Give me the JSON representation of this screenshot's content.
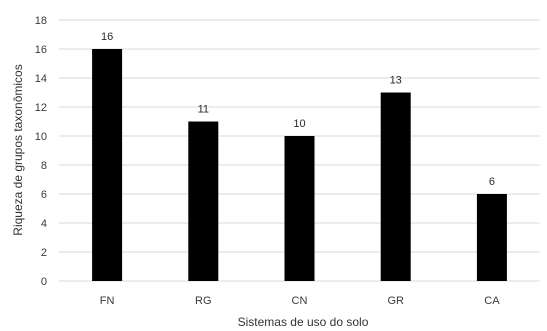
{
  "chart_data": {
    "type": "bar",
    "categories": [
      "FN",
      "RG",
      "CN",
      "GR",
      "CA"
    ],
    "values": [
      16,
      11,
      10,
      13,
      6
    ],
    "data_labels": [
      "16",
      "11",
      "10",
      "13",
      "6"
    ],
    "xlabel": "Sistemas de uso do solo",
    "ylabel": "Riqueza de grupos taxonômicos",
    "ylim": [
      0,
      18
    ],
    "yticks": [
      0,
      2,
      4,
      6,
      8,
      10,
      12,
      14,
      16,
      18
    ],
    "ytick_labels": [
      "0",
      "2",
      "4",
      "6",
      "8",
      "10",
      "12",
      "14",
      "16",
      "18"
    ],
    "grid": true,
    "legend": "none",
    "bar_color": "#000000"
  }
}
